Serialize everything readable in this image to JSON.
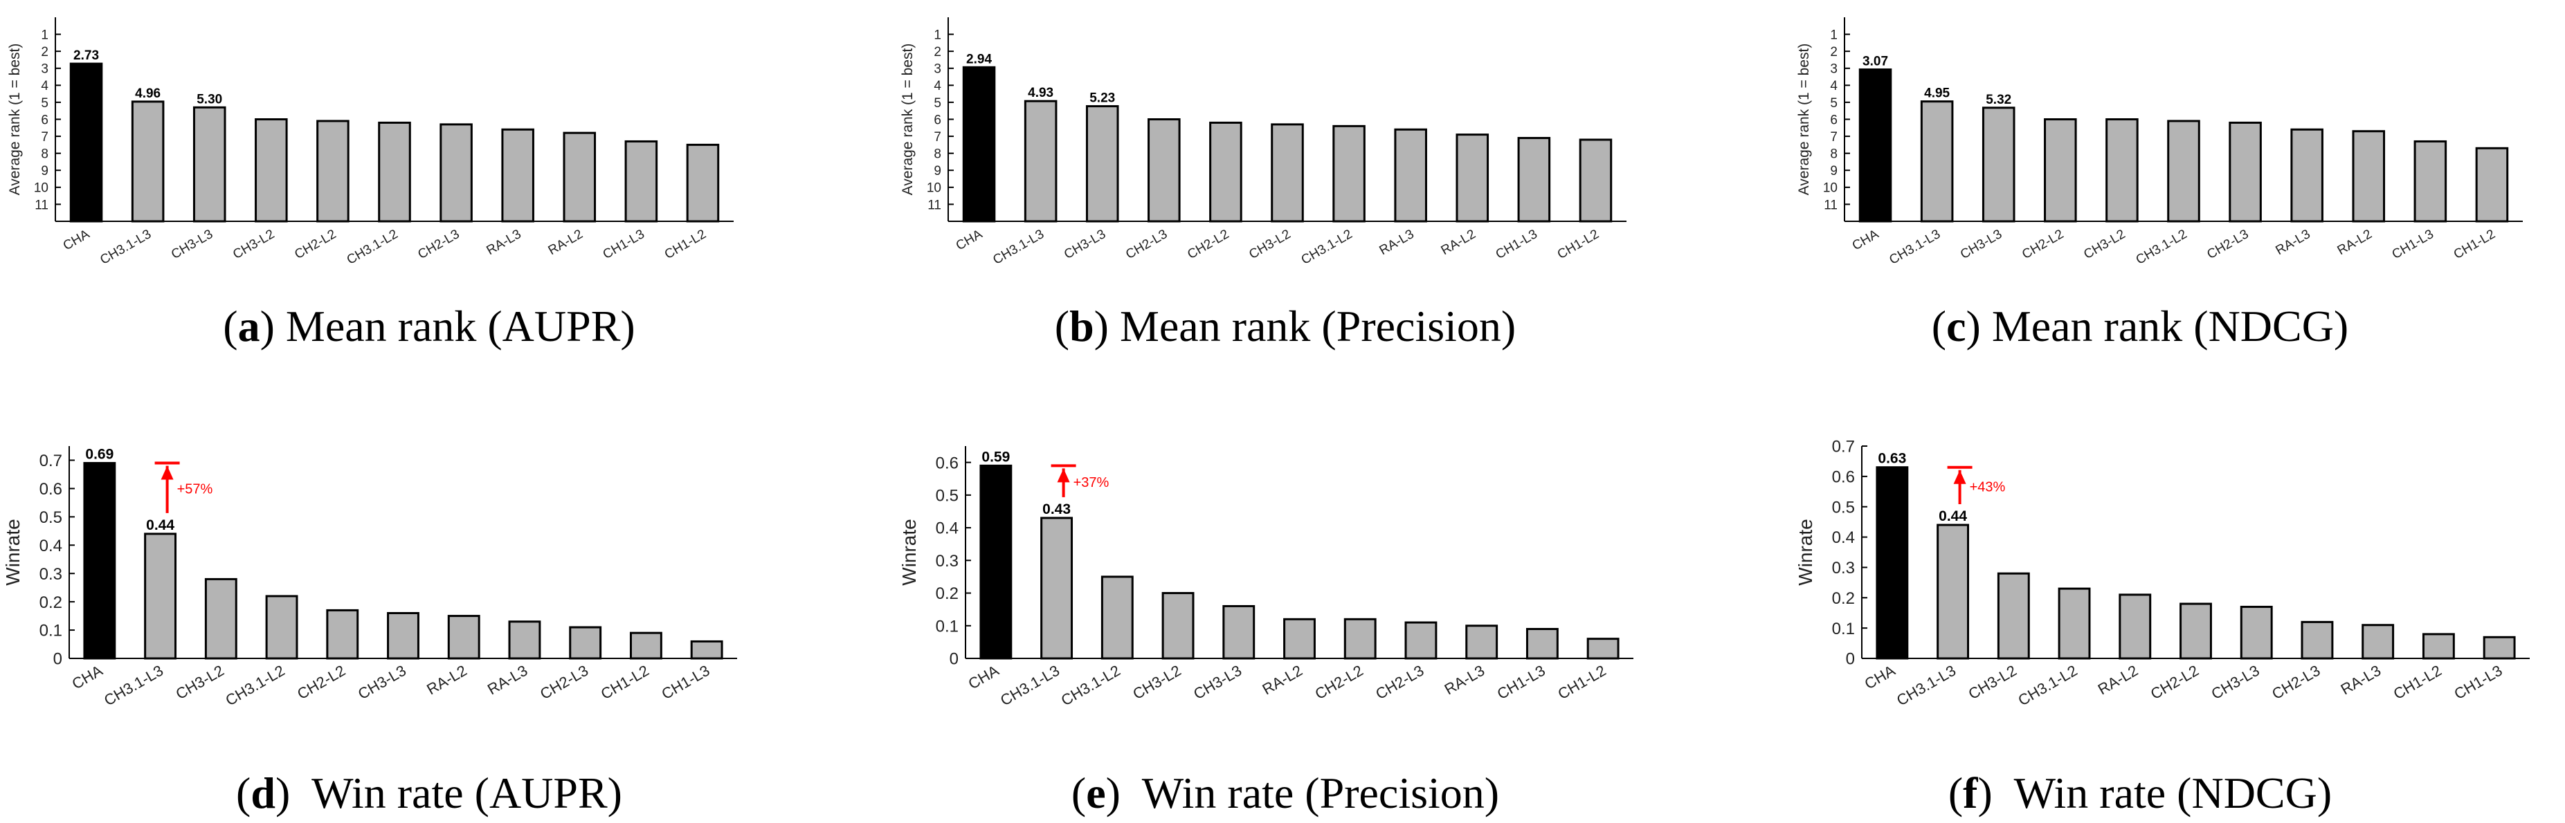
{
  "figure": {
    "panels": [
      {
        "letter": "a",
        "caption": "Mean rank (AUPR)"
      },
      {
        "letter": "b",
        "caption": "Mean rank (Precision)"
      },
      {
        "letter": "c",
        "caption": "Mean rank (NDCG)"
      },
      {
        "letter": "d",
        "caption": " Win rate (AUPR)"
      },
      {
        "letter": "e",
        "caption": " Win rate (Precision)"
      },
      {
        "letter": "f",
        "caption": " Win rate (NDCG)"
      }
    ]
  },
  "colors": {
    "highlight": "#000000",
    "bar": "#b4b4b4",
    "annotation": "#ff0000",
    "axis": "#000000"
  },
  "chart_data": [
    {
      "type": "bar",
      "title": "Mean rank (AUPR)",
      "xlabel": "",
      "ylabel": "Average rank (1 = best)",
      "ylim": [
        0,
        12
      ],
      "yreversed": true,
      "yticks": [
        "1",
        "2",
        "3",
        "4",
        "5",
        "6",
        "7",
        "8",
        "9",
        "10",
        "11"
      ],
      "categories": [
        "CHA",
        "CH3.1-L3",
        "CH3-L3",
        "CH3-L2",
        "CH2-L2",
        "CH3.1-L2",
        "CH2-L3",
        "RA-L3",
        "RA-L2",
        "CH1-L3",
        "CH1-L2"
      ],
      "values": [
        2.73,
        4.96,
        5.3,
        6.0,
        6.1,
        6.2,
        6.3,
        6.6,
        6.8,
        7.3,
        7.5
      ],
      "data_labels": [
        "2.73",
        "4.96",
        "5.30",
        null,
        null,
        null,
        null,
        null,
        null,
        null,
        null
      ]
    },
    {
      "type": "bar",
      "title": "Mean rank (Precision)",
      "xlabel": "",
      "ylabel": "Average rank (1 = best)",
      "ylim": [
        0,
        12
      ],
      "yreversed": true,
      "yticks": [
        "1",
        "2",
        "3",
        "4",
        "5",
        "6",
        "7",
        "8",
        "9",
        "10",
        "11"
      ],
      "categories": [
        "CHA",
        "CH3.1-L3",
        "CH3-L3",
        "CH2-L3",
        "CH2-L2",
        "CH3-L2",
        "CH3.1-L2",
        "RA-L3",
        "RA-L2",
        "CH1-L3",
        "CH1-L2"
      ],
      "values": [
        2.94,
        4.93,
        5.23,
        6.0,
        6.2,
        6.3,
        6.4,
        6.6,
        6.9,
        7.1,
        7.2
      ],
      "data_labels": [
        "2.94",
        "4.93",
        "5.23",
        null,
        null,
        null,
        null,
        null,
        null,
        null,
        null
      ]
    },
    {
      "type": "bar",
      "title": "Mean rank (NDCG)",
      "xlabel": "",
      "ylabel": "Average rank (1 = best)",
      "ylim": [
        0,
        12
      ],
      "yreversed": true,
      "yticks": [
        "1",
        "2",
        "3",
        "4",
        "5",
        "6",
        "7",
        "8",
        "9",
        "10",
        "11"
      ],
      "categories": [
        "CHA",
        "CH3.1-L3",
        "CH3-L3",
        "CH2-L2",
        "CH3-L2",
        "CH3.1-L2",
        "CH2-L3",
        "RA-L3",
        "RA-L2",
        "CH1-L3",
        "CH1-L2"
      ],
      "values": [
        3.07,
        4.95,
        5.32,
        6.0,
        6.0,
        6.1,
        6.2,
        6.6,
        6.7,
        7.3,
        7.7
      ],
      "data_labels": [
        "3.07",
        "4.95",
        "5.32",
        null,
        null,
        null,
        null,
        null,
        null,
        null,
        null
      ]
    },
    {
      "type": "bar",
      "title": "Win rate (AUPR)",
      "xlabel": "",
      "ylabel": "Winrate",
      "ylim": [
        0,
        0.75
      ],
      "yreversed": false,
      "yticks": [
        "0",
        "0.1",
        "0.2",
        "0.3",
        "0.4",
        "0.5",
        "0.6",
        "0.7"
      ],
      "categories": [
        "CHA",
        "CH3.1-L3",
        "CH3-L2",
        "CH3.1-L2",
        "CH2-L2",
        "CH3-L3",
        "RA-L2",
        "RA-L3",
        "CH2-L3",
        "CH1-L2",
        "CH1-L3"
      ],
      "values": [
        0.69,
        0.44,
        0.28,
        0.22,
        0.17,
        0.16,
        0.15,
        0.13,
        0.11,
        0.09,
        0.06
      ],
      "data_labels": [
        "0.69",
        "0.44",
        null,
        null,
        null,
        null,
        null,
        null,
        null,
        null,
        null
      ],
      "improvement": "+57%"
    },
    {
      "type": "bar",
      "title": "Win rate (Precision)",
      "xlabel": "",
      "ylabel": "Winrate",
      "ylim": [
        0,
        0.65
      ],
      "yreversed": false,
      "yticks": [
        "0",
        "0.1",
        "0.2",
        "0.3",
        "0.4",
        "0.5",
        "0.6"
      ],
      "categories": [
        "CHA",
        "CH3.1-L3",
        "CH3.1-L2",
        "CH3-L2",
        "CH3-L3",
        "RA-L2",
        "CH2-L2",
        "CH2-L3",
        "RA-L3",
        "CH1-L3",
        "CH1-L2"
      ],
      "values": [
        0.59,
        0.43,
        0.25,
        0.2,
        0.16,
        0.12,
        0.12,
        0.11,
        0.1,
        0.09,
        0.06
      ],
      "data_labels": [
        "0.59",
        "0.43",
        null,
        null,
        null,
        null,
        null,
        null,
        null,
        null,
        null
      ],
      "improvement": "+37%"
    },
    {
      "type": "bar",
      "title": "Win rate (NDCG)",
      "xlabel": "",
      "ylabel": "Winrate",
      "ylim": [
        0,
        0.7
      ],
      "yreversed": false,
      "yticks": [
        "0",
        "0.1",
        "0.2",
        "0.3",
        "0.4",
        "0.5",
        "0.6",
        "0.7"
      ],
      "categories": [
        "CHA",
        "CH3.1-L3",
        "CH3-L2",
        "CH3.1-L2",
        "RA-L2",
        "CH2-L2",
        "CH3-L3",
        "CH2-L3",
        "RA-L3",
        "CH1-L2",
        "CH1-L3"
      ],
      "values": [
        0.63,
        0.44,
        0.28,
        0.23,
        0.21,
        0.18,
        0.17,
        0.12,
        0.11,
        0.08,
        0.07
      ],
      "data_labels": [
        "0.63",
        "0.44",
        null,
        null,
        null,
        null,
        null,
        null,
        null,
        null,
        null
      ],
      "improvement": "+43%"
    }
  ]
}
